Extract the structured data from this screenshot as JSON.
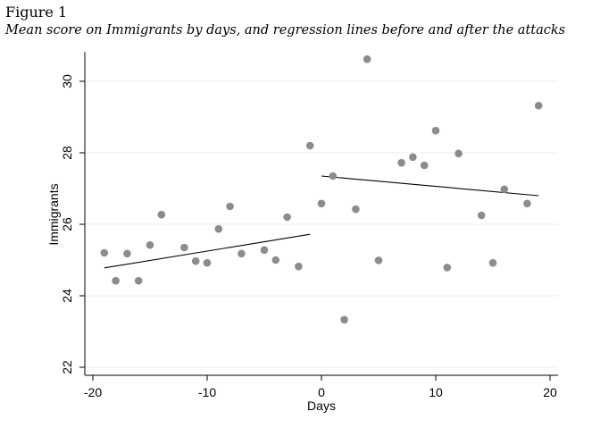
{
  "figure": {
    "label": "Figure 1",
    "caption": "Mean score on Immigrants by days, and regression lines before and after the attacks"
  },
  "chart_data": {
    "type": "scatter",
    "title": "",
    "xlabel": "Days",
    "ylabel": "Immigrants",
    "xlim": [
      -20,
      20
    ],
    "ylim": [
      22,
      30.5
    ],
    "xticks": [
      -20,
      -10,
      0,
      10,
      20
    ],
    "xtick_labels": [
      "-20",
      "-10",
      "0",
      "10",
      "20"
    ],
    "yticks": [
      22,
      24,
      26,
      28,
      30
    ],
    "ytick_labels": [
      "22",
      "24",
      "26",
      "28",
      "30"
    ],
    "grid": "horizontal",
    "legend": "none",
    "marker_color": "#8c8c8c",
    "line_color": "#000000",
    "points": [
      {
        "x": -19,
        "y": 25.2
      },
      {
        "x": -18,
        "y": 24.42
      },
      {
        "x": -17,
        "y": 25.18
      },
      {
        "x": -16,
        "y": 24.42
      },
      {
        "x": -15,
        "y": 25.42
      },
      {
        "x": -14,
        "y": 26.27
      },
      {
        "x": -12,
        "y": 25.35
      },
      {
        "x": -11,
        "y": 24.97
      },
      {
        "x": -10,
        "y": 24.92
      },
      {
        "x": -9,
        "y": 25.87
      },
      {
        "x": -8,
        "y": 26.5
      },
      {
        "x": -7,
        "y": 25.18
      },
      {
        "x": -5,
        "y": 25.28
      },
      {
        "x": -4,
        "y": 25.0
      },
      {
        "x": -3,
        "y": 26.2
      },
      {
        "x": -2,
        "y": 24.82
      },
      {
        "x": -1,
        "y": 28.2
      },
      {
        "x": 0,
        "y": 26.58
      },
      {
        "x": 1,
        "y": 27.35
      },
      {
        "x": 2,
        "y": 23.33
      },
      {
        "x": 3,
        "y": 26.42
      },
      {
        "x": 4,
        "y": 30.62
      },
      {
        "x": 5,
        "y": 24.99
      },
      {
        "x": 7,
        "y": 27.72
      },
      {
        "x": 8,
        "y": 27.88
      },
      {
        "x": 9,
        "y": 27.65
      },
      {
        "x": 10,
        "y": 28.62
      },
      {
        "x": 11,
        "y": 24.79
      },
      {
        "x": 12,
        "y": 27.98
      },
      {
        "x": 14,
        "y": 26.25
      },
      {
        "x": 15,
        "y": 24.92
      },
      {
        "x": 16,
        "y": 26.98
      },
      {
        "x": 18,
        "y": 26.58
      },
      {
        "x": 19,
        "y": 29.32
      }
    ],
    "regression_lines": [
      {
        "x": [
          -19,
          -1
        ],
        "y": [
          24.78,
          25.72
        ]
      },
      {
        "x": [
          0,
          19
        ],
        "y": [
          27.35,
          26.8
        ]
      }
    ]
  }
}
